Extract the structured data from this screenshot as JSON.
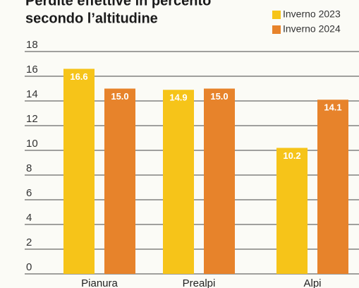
{
  "chart_data": {
    "type": "bar",
    "title": [
      "Perdite effettive in percento",
      "secondo l’altitudine"
    ],
    "categories": [
      "Pianura",
      "Prealpi",
      "Alpi"
    ],
    "series": [
      {
        "name": "Inverno 2023",
        "color": "#f6c419",
        "values": [
          16.6,
          14.9,
          10.2
        ],
        "value_labels": [
          "16.6",
          "14.9",
          "10.2"
        ]
      },
      {
        "name": "Inverno 2024",
        "color": "#e7832b",
        "values": [
          15.0,
          15.0,
          14.1
        ],
        "value_labels": [
          "15.0",
          "15.0",
          "14.1"
        ]
      }
    ],
    "ylim": [
      0,
      18
    ],
    "yticks": [
      0,
      2,
      4,
      6,
      8,
      10,
      12,
      14,
      16,
      18
    ],
    "grid": true,
    "legend": "top-right"
  }
}
